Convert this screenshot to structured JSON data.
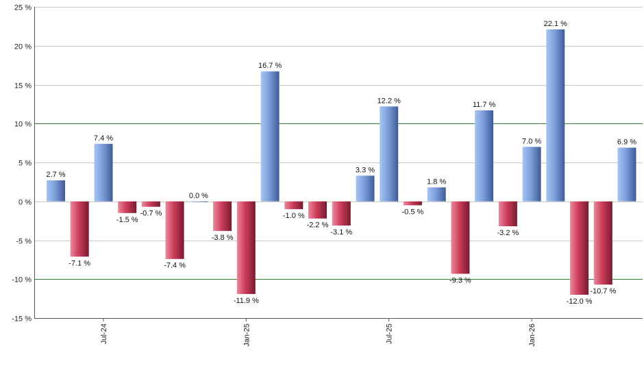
{
  "chart_data": {
    "type": "bar",
    "ylim": [
      -15,
      25
    ],
    "y_ticks": [
      25,
      20,
      15,
      10,
      5,
      0,
      -5,
      -10,
      -15
    ],
    "y_tick_suffix": " %",
    "highlight_lines": [
      10,
      -10
    ],
    "x_tick_labels": [
      {
        "label": "Jul-24",
        "index": 2
      },
      {
        "label": "Jan-25",
        "index": 8
      },
      {
        "label": "Jul-25",
        "index": 14
      },
      {
        "label": "Jan-26",
        "index": 20
      }
    ],
    "values": [
      2.7,
      -7.1,
      7.4,
      -1.5,
      -0.7,
      -7.4,
      0.0,
      -3.8,
      -11.9,
      16.7,
      -1.0,
      -2.2,
      -3.1,
      3.3,
      12.2,
      -0.5,
      1.8,
      -9.3,
      11.7,
      -3.2,
      7.0,
      22.1,
      -12.0,
      -10.7,
      6.9
    ],
    "labels": [
      "2.7 %",
      "-7.1 %",
      "7.4 %",
      "-1.5 %",
      "-0.7 %",
      "-7.4 %",
      "0.0 %",
      "-3.8 %",
      "-11.9 %",
      "16.7 %",
      "-1.0 %",
      "-2.2 %",
      "-3.1 %",
      "3.3 %",
      "12.2 %",
      "-0.5 %",
      "1.8 %",
      "-9.3 %",
      "11.7 %",
      "-3.2 %",
      "7.0 %",
      "22.1 %",
      "-12.0 %",
      "-10.7 %",
      "6.9 %"
    ],
    "grid": true,
    "colors": {
      "positive": "#6f90cf",
      "negative": "#c23a55",
      "grid": "#c8c8c8",
      "highlight": "#2e7d32",
      "axis": "#555555"
    }
  }
}
